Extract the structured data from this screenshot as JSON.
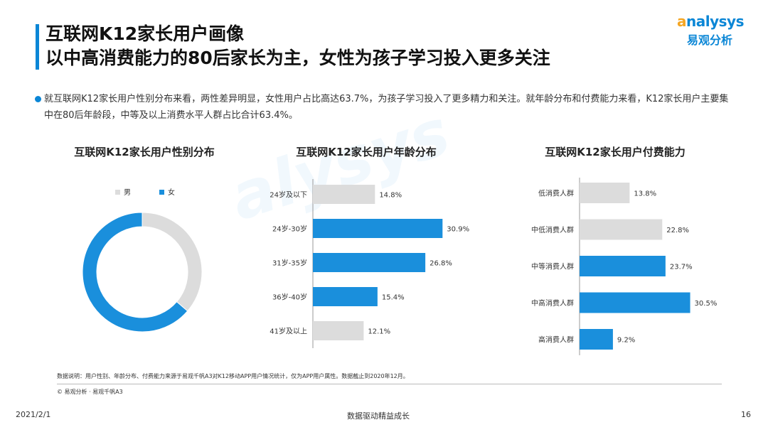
{
  "header": {
    "title_line1": "互联网K12家长用户画像",
    "title_line2": "以中高消费能力的80后家长为主，女性为孩子学习投入更多关注",
    "logo_en_rest": "nalysys",
    "logo_cn": "易观分析"
  },
  "summary_text": "就互联网K12家长用户性别分布来看，两性差异明显，女性用户占比高达63.7%，为孩子学习投入了更多精力和关注。就年龄分布和付费能力来看，K12家长用户主要集中在80后年龄段，中等及以上消费水平人群占比合计63.4%。",
  "colors": {
    "accent": "#1a8fdc",
    "gray": "#dcdcdc"
  },
  "chart_data": [
    {
      "type": "pie",
      "title": "互联网K12家长用户性别分布",
      "legend": "top-left",
      "categories": [
        "男",
        "女"
      ],
      "values": [
        36.3,
        63.7
      ],
      "colors": [
        "#dcdcdc",
        "#1a8fdc"
      ]
    },
    {
      "type": "bar",
      "orientation": "horizontal",
      "title": "互联网K12家长用户年龄分布",
      "categories": [
        "24岁及以下",
        "24岁-30岁",
        "31岁-35岁",
        "36岁-40岁",
        "41岁及以上"
      ],
      "values": [
        14.8,
        30.9,
        26.8,
        15.4,
        12.1
      ],
      "labels": [
        "14.8%",
        "30.9%",
        "26.8%",
        "15.4%",
        "12.1%"
      ],
      "highlight": [
        false,
        true,
        true,
        true,
        false
      ]
    },
    {
      "type": "bar",
      "orientation": "horizontal",
      "title": "互联网K12家长用户付费能力",
      "categories": [
        "低消费人群",
        "中低消费人群",
        "中等消费人群",
        "中高消费人群",
        "高消费人群"
      ],
      "values": [
        13.8,
        22.8,
        23.7,
        30.5,
        9.2
      ],
      "labels": [
        "13.8%",
        "22.8%",
        "23.7%",
        "30.5%",
        "9.2%"
      ],
      "highlight": [
        false,
        false,
        true,
        true,
        true
      ]
    }
  ],
  "note": "数据说明：用户性别、年龄分布、付费能力来源于易观千帆A3对K12移动APP用户情况统计，仅为APP用户属性。数据截止到2020年12月。",
  "source": "© 易观分析 · 易观千帆A3",
  "footer": {
    "date": "2021/2/1",
    "slogan": "数据驱动精益成长",
    "page": "16"
  }
}
